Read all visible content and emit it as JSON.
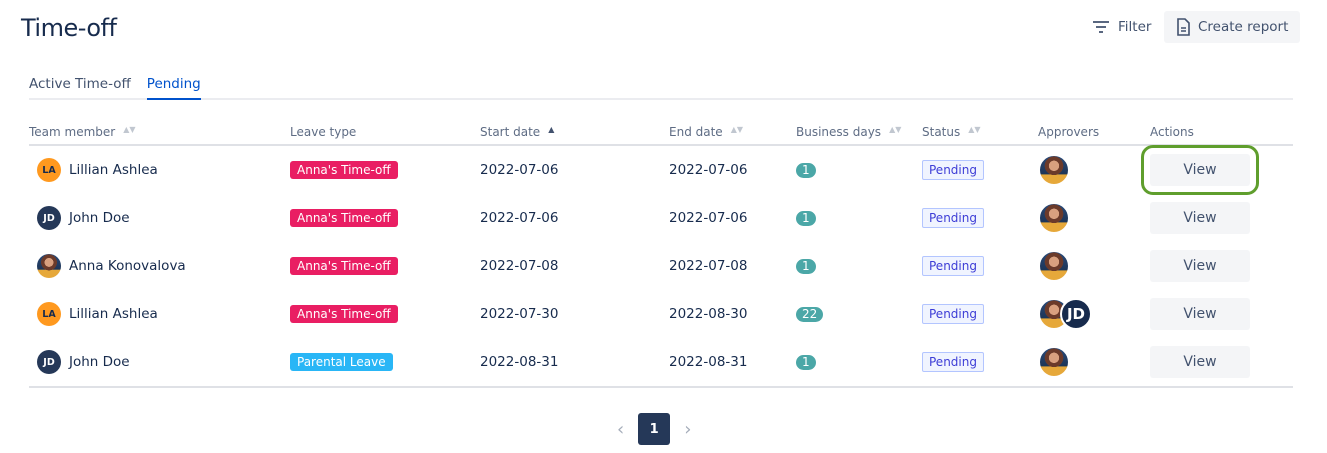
{
  "header": {
    "title": "Time-off",
    "filter_label": "Filter",
    "report_label": "Create report"
  },
  "tabs": [
    {
      "label": "Active Time-off",
      "active": false
    },
    {
      "label": "Pending",
      "active": true
    }
  ],
  "columns": [
    "Team member",
    "Leave type",
    "Start date",
    "End date",
    "Business days",
    "Status",
    "Approvers",
    "Actions"
  ],
  "sort": {
    "column": "Start date",
    "direction": "ascending"
  },
  "rows": [
    {
      "initials": "LA",
      "avatar": "initials-orange",
      "name": "Lillian Ashlea",
      "leave": "Anna's Time-off",
      "leave_color": "#e91e63",
      "start": "2022-07-06",
      "end": "2022-07-06",
      "days": "1",
      "status": "Pending",
      "approvers": [
        "photo"
      ],
      "action": "View",
      "highlighted": true
    },
    {
      "initials": "JD",
      "avatar": "initials-navy",
      "name": "John Doe",
      "leave": "Anna's Time-off",
      "leave_color": "#e91e63",
      "start": "2022-07-06",
      "end": "2022-07-06",
      "days": "1",
      "status": "Pending",
      "approvers": [
        "photo"
      ],
      "action": "View"
    },
    {
      "initials": "",
      "avatar": "photo",
      "name": "Anna Konovalova",
      "leave": "Anna's Time-off",
      "leave_color": "#e91e63",
      "start": "2022-07-08",
      "end": "2022-07-08",
      "days": "1",
      "status": "Pending",
      "approvers": [
        "photo"
      ],
      "action": "View"
    },
    {
      "initials": "LA",
      "avatar": "initials-orange",
      "name": "Lillian Ashlea",
      "leave": "Anna's Time-off",
      "leave_color": "#e91e63",
      "start": "2022-07-30",
      "end": "2022-08-30",
      "days": "22",
      "status": "Pending",
      "approvers": [
        "photo",
        "JD"
      ],
      "action": "View"
    },
    {
      "initials": "JD",
      "avatar": "initials-navy",
      "name": "John Doe",
      "leave": "Parental Leave",
      "leave_color": "#29b6f6",
      "start": "2022-08-31",
      "end": "2022-08-31",
      "days": "1",
      "status": "Pending",
      "approvers": [
        "photo"
      ],
      "action": "View"
    }
  ],
  "pagination": {
    "current": "1"
  }
}
